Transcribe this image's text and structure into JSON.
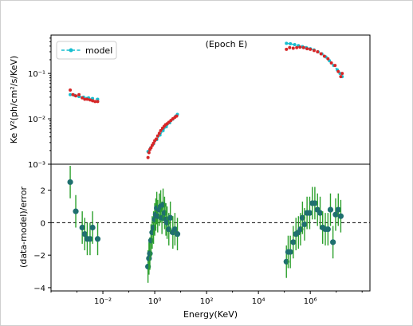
{
  "chart_data": [
    {
      "type": "scatter",
      "panel": "top",
      "title": "(Epoch E)",
      "xlabel": "",
      "ylabel": "Ke V²(ph/cm²/s/KeV)",
      "xscale": "log",
      "yscale": "log",
      "xlim": [
        0.0001,
        200000000
      ],
      "ylim": [
        0.001,
        0.7
      ],
      "yticks": [
        {
          "value": 0.001,
          "label": "10⁻³"
        },
        {
          "value": 0.01,
          "label": "10⁻²"
        },
        {
          "value": 0.1,
          "label": "10⁻¹"
        }
      ],
      "legend": {
        "position": "top-left",
        "entries": [
          "model"
        ]
      },
      "colors": {
        "data": "#d62728",
        "model": "#17becf"
      },
      "series": [
        {
          "name": "",
          "role": "data",
          "color": "#d62728",
          "points": [
            [
              0.00055,
              0.043
            ],
            [
              0.0007,
              0.034
            ],
            [
              0.0009,
              0.032
            ],
            [
              0.0012,
              0.034
            ],
            [
              0.0016,
              0.029
            ],
            [
              0.002,
              0.027
            ],
            [
              0.0025,
              0.027
            ],
            [
              0.0032,
              0.026
            ],
            [
              0.004,
              0.025
            ],
            [
              0.005,
              0.024
            ],
            [
              0.0063,
              0.024
            ],
            [
              0.55,
              0.0014
            ],
            [
              0.6,
              0.0018
            ],
            [
              0.65,
              0.0021
            ],
            [
              0.72,
              0.0023
            ],
            [
              0.8,
              0.0026
            ],
            [
              0.9,
              0.0029
            ],
            [
              1.0,
              0.0033
            ],
            [
              1.15,
              0.0036
            ],
            [
              1.3,
              0.0042
            ],
            [
              1.5,
              0.0048
            ],
            [
              1.7,
              0.0055
            ],
            [
              2.0,
              0.0062
            ],
            [
              2.3,
              0.0068
            ],
            [
              2.6,
              0.0074
            ],
            [
              3.0,
              0.0078
            ],
            [
              3.5,
              0.0084
            ],
            [
              4.2,
              0.0092
            ],
            [
              5.0,
              0.01
            ],
            [
              6.0,
              0.0108
            ],
            [
              7.0,
              0.0115
            ],
            [
              120000,
              0.34
            ],
            [
              160000,
              0.37
            ],
            [
              220000,
              0.36
            ],
            [
              300000,
              0.37
            ],
            [
              400000,
              0.38
            ],
            [
              550000,
              0.37
            ],
            [
              750000,
              0.35
            ],
            [
              1000000,
              0.34
            ],
            [
              1400000,
              0.32
            ],
            [
              1900000,
              0.3
            ],
            [
              2600000,
              0.27
            ],
            [
              3500000,
              0.24
            ],
            [
              4800000,
              0.21
            ],
            [
              6500000,
              0.17
            ],
            [
              9000000,
              0.15
            ],
            [
              12000000,
              0.11
            ],
            [
              15000000,
              0.085
            ],
            [
              17000000,
              0.1
            ]
          ]
        },
        {
          "name": "model",
          "role": "model",
          "color": "#17becf",
          "segments": [
            [
              [
                0.00055,
                0.034
              ],
              [
                0.0008,
                0.033
              ],
              [
                0.0012,
                0.031
              ],
              [
                0.0018,
                0.03
              ],
              [
                0.0028,
                0.029
              ],
              [
                0.004,
                0.028
              ],
              [
                0.0063,
                0.027
              ]
            ],
            [
              [
                0.55,
                0.0019
              ],
              [
                0.7,
                0.0023
              ],
              [
                0.9,
                0.0028
              ],
              [
                1.2,
                0.0035
              ],
              [
                1.6,
                0.0044
              ],
              [
                2.1,
                0.0055
              ],
              [
                2.8,
                0.0067
              ],
              [
                3.8,
                0.0082
              ],
              [
                5.0,
                0.0098
              ],
              [
                6.5,
                0.0115
              ],
              [
                7.5,
                0.0125
              ]
            ],
            [
              [
                120000,
                0.46
              ],
              [
                170000,
                0.45
              ],
              [
                250000,
                0.43
              ],
              [
                350000,
                0.41
              ],
              [
                500000,
                0.39
              ],
              [
                700000,
                0.37
              ],
              [
                1000000,
                0.35
              ],
              [
                1400000,
                0.33
              ],
              [
                2000000,
                0.3
              ],
              [
                2800000,
                0.27
              ],
              [
                4000000,
                0.23
              ],
              [
                5500000,
                0.19
              ],
              [
                8000000,
                0.15
              ],
              [
                11000000,
                0.12
              ],
              [
                14000000,
                0.1
              ],
              [
                17000000,
                0.085
              ]
            ]
          ]
        }
      ]
    },
    {
      "type": "scatter",
      "panel": "bottom",
      "xlabel": "Energy(KeV)",
      "ylabel": "(data-model)/error",
      "xscale": "log",
      "xlim": [
        0.0001,
        200000000
      ],
      "ylim": [
        -4.2,
        3.6
      ],
      "xticks": [
        {
          "value": 0.01,
          "label": "10⁻²"
        },
        {
          "value": 1,
          "label": "10⁰"
        },
        {
          "value": 100,
          "label": "10²"
        },
        {
          "value": 10000,
          "label": "10⁴"
        },
        {
          "value": 1000000,
          "label": "10⁶"
        }
      ],
      "yticks": [
        {
          "value": -4,
          "label": "−4"
        },
        {
          "value": -2,
          "label": "−2"
        },
        {
          "value": 0,
          "label": "0"
        },
        {
          "value": 2,
          "label": "2"
        }
      ],
      "reference_line": {
        "y": 0,
        "style": "dashed",
        "color": "#000000"
      },
      "colors": {
        "marker": "#1f6f6f",
        "errorbar": "#2ca02c"
      },
      "points": [
        {
          "x": 0.00055,
          "y": 2.5,
          "err": 1.0
        },
        {
          "x": 0.0009,
          "y": 0.7,
          "err": 1.0
        },
        {
          "x": 0.0016,
          "y": -0.3,
          "err": 1.0
        },
        {
          "x": 0.002,
          "y": -0.7,
          "err": 1.0
        },
        {
          "x": 0.0025,
          "y": -1.0,
          "err": 1.0
        },
        {
          "x": 0.0032,
          "y": -1.0,
          "err": 1.0
        },
        {
          "x": 0.004,
          "y": -0.3,
          "err": 1.0
        },
        {
          "x": 0.0063,
          "y": -1.0,
          "err": 1.0
        },
        {
          "x": 0.55,
          "y": -2.7,
          "err": 1.0
        },
        {
          "x": 0.6,
          "y": -2.2,
          "err": 1.0
        },
        {
          "x": 0.65,
          "y": -1.9,
          "err": 1.0
        },
        {
          "x": 0.72,
          "y": -1.1,
          "err": 1.0
        },
        {
          "x": 0.8,
          "y": -0.6,
          "err": 1.0
        },
        {
          "x": 0.9,
          "y": -0.3,
          "err": 1.0
        },
        {
          "x": 1.0,
          "y": 0.2,
          "err": 1.0
        },
        {
          "x": 1.1,
          "y": 0.5,
          "err": 1.0
        },
        {
          "x": 1.2,
          "y": 0.9,
          "err": 1.0
        },
        {
          "x": 1.3,
          "y": 0.4,
          "err": 1.0
        },
        {
          "x": 1.5,
          "y": 0.8,
          "err": 1.0
        },
        {
          "x": 1.7,
          "y": 1.0,
          "err": 1.0
        },
        {
          "x": 1.9,
          "y": 0.3,
          "err": 1.0
        },
        {
          "x": 2.1,
          "y": 1.1,
          "err": 1.0
        },
        {
          "x": 2.4,
          "y": 0.6,
          "err": 1.0
        },
        {
          "x": 2.7,
          "y": 0.2,
          "err": 1.0
        },
        {
          "x": 3.0,
          "y": 0.0,
          "err": 1.0
        },
        {
          "x": 3.5,
          "y": -0.4,
          "err": 1.0
        },
        {
          "x": 4.0,
          "y": 0.3,
          "err": 1.0
        },
        {
          "x": 5.0,
          "y": -0.6,
          "err": 1.0
        },
        {
          "x": 6.0,
          "y": -0.4,
          "err": 1.0
        },
        {
          "x": 7.5,
          "y": -0.7,
          "err": 1.0
        },
        {
          "x": 120000,
          "y": -2.4,
          "err": 1.0
        },
        {
          "x": 140000,
          "y": -1.8,
          "err": 1.0
        },
        {
          "x": 170000,
          "y": -1.8,
          "err": 1.0
        },
        {
          "x": 220000,
          "y": -1.2,
          "err": 1.0
        },
        {
          "x": 280000,
          "y": -0.7,
          "err": 1.0
        },
        {
          "x": 350000,
          "y": -0.6,
          "err": 1.0
        },
        {
          "x": 420000,
          "y": -0.4,
          "err": 1.0
        },
        {
          "x": 500000,
          "y": 0.3,
          "err": 1.0
        },
        {
          "x": 600000,
          "y": -0.1,
          "err": 1.0
        },
        {
          "x": 750000,
          "y": 0.6,
          "err": 1.0
        },
        {
          "x": 950000,
          "y": 0.6,
          "err": 1.0
        },
        {
          "x": 1200000,
          "y": 1.2,
          "err": 1.0
        },
        {
          "x": 1500000,
          "y": 1.2,
          "err": 1.0
        },
        {
          "x": 1900000,
          "y": 0.8,
          "err": 1.0
        },
        {
          "x": 2400000,
          "y": 0.6,
          "err": 1.0
        },
        {
          "x": 3000000,
          "y": -0.3,
          "err": 1.0
        },
        {
          "x": 3800000,
          "y": -0.4,
          "err": 1.0
        },
        {
          "x": 4800000,
          "y": -0.4,
          "err": 1.0
        },
        {
          "x": 6000000,
          "y": 0.8,
          "err": 1.0
        },
        {
          "x": 7500000,
          "y": -1.2,
          "err": 1.0
        },
        {
          "x": 9500000,
          "y": 0.5,
          "err": 1.0
        },
        {
          "x": 12000000,
          "y": 0.8,
          "err": 1.0
        },
        {
          "x": 15000000,
          "y": 0.4,
          "err": 1.0
        }
      ]
    }
  ]
}
